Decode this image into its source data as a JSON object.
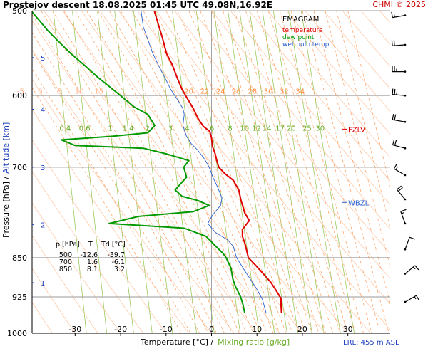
{
  "header": {
    "title": "Prostejov   descent   18.08.2025 01:45 UTC   49.08N,16.92E",
    "copyright": "CHMI © 2025"
  },
  "chart_data": {
    "type": "line",
    "pressure_ticks": [
      500,
      600,
      700,
      850,
      925,
      1000
    ],
    "temperature_ticks": [
      -30,
      -20,
      -10,
      0,
      10,
      20,
      30
    ],
    "xlim": [
      -39,
      39
    ],
    "ylim": [
      1000,
      500
    ],
    "y_scale": "log-pressure",
    "x_axis_title": {
      "temperature_part": "Temperature [°C]  /",
      "mixing_part": "Mixing ratio [g/kg]"
    },
    "y_axis_title": {
      "pressure_part": "Pressure [hPa]  /",
      "altitude_part": "Altitude [km]"
    },
    "altitude_labels": [
      {
        "km": "5",
        "p": 553
      },
      {
        "km": "4",
        "p": 618
      },
      {
        "km": "3",
        "p": 700
      },
      {
        "km": "2",
        "p": 792
      },
      {
        "km": "1",
        "p": 897
      }
    ],
    "mixing_ratio_labels": [
      "0.4",
      "0.6",
      "1",
      "1.4",
      "2",
      "3",
      "4",
      "6",
      "8",
      "10",
      "12",
      "14",
      "17",
      "20",
      "25",
      "30"
    ],
    "mixing_ratio_values": [
      0.4,
      0.6,
      1,
      1.4,
      2,
      3,
      4,
      6,
      8,
      10,
      12,
      14,
      17,
      20,
      25,
      30
    ],
    "dry_adiabat_labels": [
      "-5",
      "0",
      "5",
      "10",
      "15"
    ],
    "dry_adiabat_values": [
      -5,
      0,
      5,
      10,
      15
    ],
    "moist_adiabat_labels": [
      "20",
      "22",
      "24",
      "26",
      "28",
      "30",
      "32",
      "34"
    ],
    "moist_adiabat_values": [
      20,
      22,
      24,
      26,
      28,
      30,
      32,
      34
    ],
    "legend": {
      "title": "EMAGRAM",
      "items": [
        {
          "name": "temperature",
          "color": "#e00000"
        },
        {
          "name": "dew point",
          "color": "#009900"
        },
        {
          "name": "wet bulb temp.",
          "color": "#2a5fcf"
        }
      ]
    },
    "levels": [
      {
        "name": "FZLV",
        "p": 645,
        "color": "#e00000"
      },
      {
        "name": "WBZL",
        "p": 755,
        "color": "#2a5fcf"
      }
    ],
    "table": {
      "headers": [
        "p [hPa]",
        "T",
        "Td [°C]"
      ],
      "rows": [
        [
          "500",
          "-12.6",
          "-39.7"
        ],
        [
          "700",
          "1.6",
          "-6.1"
        ],
        [
          "850",
          "8.1",
          "3.2"
        ]
      ]
    },
    "lrl": "LRL: 455 m ASL",
    "series": [
      {
        "name": "temperature",
        "color": "#e00000",
        "points": [
          [
            -12.6,
            500
          ],
          [
            -11.7,
            515
          ],
          [
            -10.8,
            530
          ],
          [
            -9.9,
            548
          ],
          [
            -8.6,
            562
          ],
          [
            -7.6,
            577
          ],
          [
            -6.5,
            592
          ],
          [
            -5.2,
            605
          ],
          [
            -4.0,
            617
          ],
          [
            -3.0,
            630
          ],
          [
            -1.8,
            641
          ],
          [
            -0.4,
            648
          ],
          [
            0.0,
            657
          ],
          [
            0.2,
            669
          ],
          [
            0.8,
            680
          ],
          [
            1.2,
            691
          ],
          [
            1.6,
            700
          ],
          [
            3.0,
            710
          ],
          [
            4.8,
            720
          ],
          [
            6.0,
            735
          ],
          [
            6.5,
            752
          ],
          [
            7.3,
            772
          ],
          [
            8.3,
            785
          ],
          [
            6.8,
            800
          ],
          [
            6.8,
            812
          ],
          [
            7.4,
            826
          ],
          [
            8.1,
            850
          ],
          [
            9.8,
            865
          ],
          [
            11.6,
            882
          ],
          [
            13.1,
            897
          ],
          [
            14.4,
            915
          ],
          [
            15.3,
            928
          ],
          [
            15.3,
            942
          ],
          [
            15.4,
            957
          ]
        ]
      },
      {
        "name": "dew point",
        "color": "#009900",
        "points": [
          [
            -39.7,
            500
          ],
          [
            -38.0,
            510
          ],
          [
            -36.0,
            522
          ],
          [
            -33.5,
            535
          ],
          [
            -31.0,
            548
          ],
          [
            -28.0,
            562
          ],
          [
            -25.0,
            577
          ],
          [
            -21.5,
            593
          ],
          [
            -19.0,
            605
          ],
          [
            -17.0,
            615
          ],
          [
            -14.0,
            625
          ],
          [
            -12.5,
            640
          ],
          [
            -14.0,
            650
          ],
          [
            -22.0,
            655
          ],
          [
            -33.0,
            660
          ],
          [
            -30.0,
            668
          ],
          [
            -15.0,
            672
          ],
          [
            -10.0,
            680
          ],
          [
            -5.0,
            690
          ],
          [
            -6.1,
            700
          ],
          [
            -5.5,
            715
          ],
          [
            -8.0,
            735
          ],
          [
            -6.5,
            745
          ],
          [
            -3.0,
            752
          ],
          [
            -0.5,
            760
          ],
          [
            -4.0,
            770
          ],
          [
            -16.0,
            778
          ],
          [
            -22.5,
            790
          ],
          [
            -6.0,
            798
          ],
          [
            -1.2,
            812
          ],
          [
            0.5,
            826
          ],
          [
            2.5,
            842
          ],
          [
            3.2,
            850
          ],
          [
            4.3,
            870
          ],
          [
            4.7,
            890
          ],
          [
            5.3,
            905
          ],
          [
            6.4,
            925
          ],
          [
            6.9,
            940
          ],
          [
            7.3,
            957
          ]
        ]
      },
      {
        "name": "wet bulb temp.",
        "color": "#2a5fcf",
        "points": [
          [
            -15.5,
            500
          ],
          [
            -15.0,
            518
          ],
          [
            -14.0,
            532
          ],
          [
            -13.0,
            547
          ],
          [
            -11.7,
            562
          ],
          [
            -10.3,
            577
          ],
          [
            -9.0,
            592
          ],
          [
            -7.5,
            605
          ],
          [
            -6.3,
            617
          ],
          [
            -6.0,
            625
          ],
          [
            -6.3,
            640
          ],
          [
            -5.5,
            655
          ],
          [
            -4.5,
            665
          ],
          [
            -3.0,
            675
          ],
          [
            -1.5,
            688
          ],
          [
            -0.5,
            700
          ],
          [
            0.3,
            715
          ],
          [
            1.3,
            730
          ],
          [
            2.3,
            748
          ],
          [
            2.0,
            760
          ],
          [
            0.3,
            775
          ],
          [
            -0.8,
            790
          ],
          [
            0.8,
            805
          ],
          [
            3.5,
            818
          ],
          [
            4.8,
            830
          ],
          [
            5.5,
            850
          ],
          [
            7.0,
            870
          ],
          [
            8.5,
            890
          ],
          [
            10.0,
            910
          ],
          [
            11.2,
            930
          ],
          [
            12.0,
            957
          ]
        ]
      }
    ],
    "wind_barbs": [
      {
        "p": 505,
        "dir": 260,
        "kt": 15
      },
      {
        "p": 538,
        "dir": 265,
        "kt": 20
      },
      {
        "p": 570,
        "dir": 270,
        "kt": 25
      },
      {
        "p": 600,
        "dir": 275,
        "kt": 25
      },
      {
        "p": 635,
        "dir": 280,
        "kt": 20
      },
      {
        "p": 672,
        "dir": 285,
        "kt": 20
      },
      {
        "p": 712,
        "dir": 300,
        "kt": 15
      },
      {
        "p": 750,
        "dir": 320,
        "kt": 20
      },
      {
        "p": 790,
        "dir": 340,
        "kt": 15
      },
      {
        "p": 835,
        "dir": 20,
        "kt": 10
      },
      {
        "p": 880,
        "dir": 50,
        "kt": 15
      },
      {
        "p": 935,
        "dir": 60,
        "kt": 15
      }
    ]
  }
}
